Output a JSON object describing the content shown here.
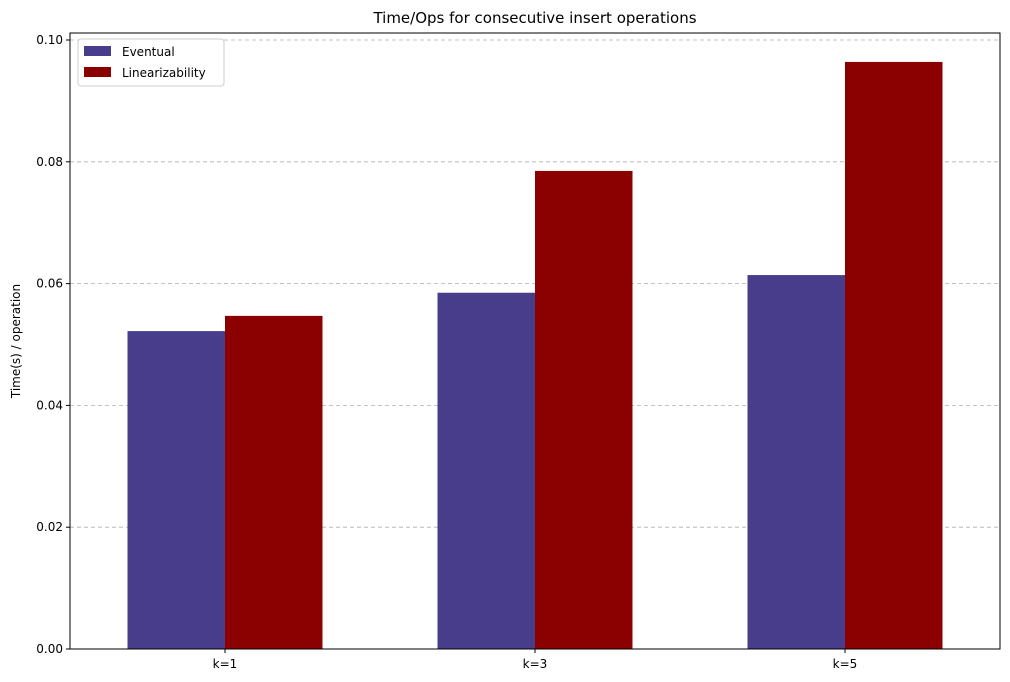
{
  "chart_data": {
    "type": "bar",
    "title": "Time/Ops for consecutive insert operations",
    "xlabel": "",
    "ylabel": "Time(s) / operation",
    "categories": [
      "k=1",
      "k=3",
      "k=5"
    ],
    "series": [
      {
        "name": "Eventual",
        "values": [
          0.0522,
          0.0585,
          0.0614
        ],
        "color": "#483d8b"
      },
      {
        "name": "Linearizability",
        "values": [
          0.0547,
          0.0785,
          0.0964
        ],
        "color": "#8b0000"
      }
    ],
    "ylim": [
      0,
      0.1
    ],
    "yticks": [
      "0.00",
      "0.02",
      "0.04",
      "0.06",
      "0.08",
      "0.10"
    ],
    "grid": "y-dashed",
    "legend_position": "top-left"
  }
}
